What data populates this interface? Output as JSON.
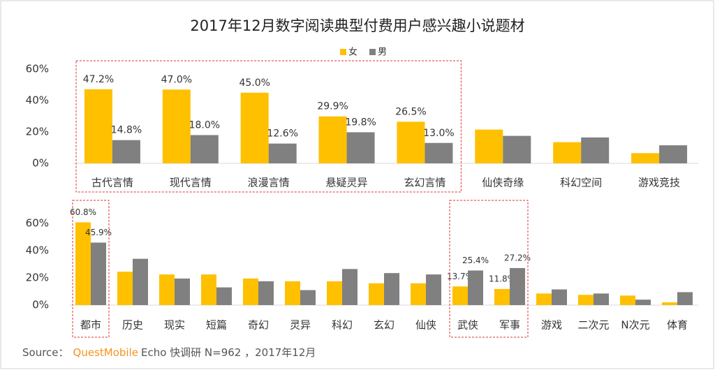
{
  "chart_data": [
    {
      "type": "bar",
      "title": "2017年12月数字阅读典型付费用户感兴趣小说题材",
      "categories": [
        "古代言情",
        "现代言情",
        "浪漫言情",
        "悬疑灵异",
        "玄幻言情",
        "仙侠奇缘",
        "科幻空间",
        "游戏竞技"
      ],
      "series": [
        {
          "name": "女",
          "color": "#FFC000",
          "values": [
            47.2,
            47.0,
            45.0,
            29.9,
            26.5,
            21.5,
            13.5,
            6.5
          ],
          "value_labels": [
            "47.2%",
            "47.0%",
            "45.0%",
            "29.9%",
            "26.5%",
            null,
            null,
            null
          ]
        },
        {
          "name": "男",
          "color": "#808080",
          "values": [
            14.8,
            18.0,
            12.6,
            19.8,
            13.0,
            17.5,
            16.5,
            11.5
          ],
          "value_labels": [
            "14.8%",
            "18.0%",
            "12.6%",
            "19.8%",
            "13.0%",
            null,
            null,
            null
          ]
        }
      ],
      "ylim": [
        0,
        60
      ],
      "yticks": [
        {
          "value": 0,
          "label": "0%"
        },
        {
          "value": 20,
          "label": "20%"
        },
        {
          "value": 40,
          "label": "40%"
        },
        {
          "value": 60,
          "label": "60%"
        }
      ],
      "legend": "top",
      "grid": false
    },
    {
      "type": "bar",
      "categories": [
        "都市",
        "历史",
        "现实",
        "短篇",
        "奇幻",
        "灵异",
        "科幻",
        "玄幻",
        "仙侠",
        "武侠",
        "军事",
        "游戏",
        "二次元",
        "N次元",
        "体育"
      ],
      "series": [
        {
          "name": "女",
          "color": "#FFC000",
          "values": [
            60.8,
            24.5,
            22.5,
            22.5,
            19.5,
            17.5,
            17.5,
            16,
            16,
            13.7,
            11.8,
            8.5,
            7.5,
            7,
            2
          ],
          "value_labels": [
            "60.8%",
            null,
            null,
            null,
            null,
            null,
            null,
            null,
            null,
            "13.7%",
            "11.8%",
            null,
            null,
            null,
            null
          ]
        },
        {
          "name": "男",
          "color": "#808080",
          "values": [
            45.9,
            34,
            19.5,
            13,
            17.5,
            11,
            26.5,
            23.5,
            22.5,
            25.4,
            27.2,
            11.5,
            8.5,
            4,
            9.5
          ],
          "value_labels": [
            "45.9%",
            null,
            null,
            null,
            null,
            null,
            null,
            null,
            null,
            "25.4%",
            "27.2%",
            null,
            null,
            null,
            null
          ]
        }
      ],
      "ylim": [
        0,
        60
      ],
      "yticks": [
        {
          "value": 0,
          "label": "0%"
        },
        {
          "value": 20,
          "label": "20%"
        },
        {
          "value": 40,
          "label": "40%"
        },
        {
          "value": 60,
          "label": "60%"
        }
      ],
      "grid": false
    }
  ],
  "source": {
    "label": "Source：",
    "brand": "QuestMobile",
    "rest": "Echo 快调研  N=962 ，2017年12月"
  }
}
